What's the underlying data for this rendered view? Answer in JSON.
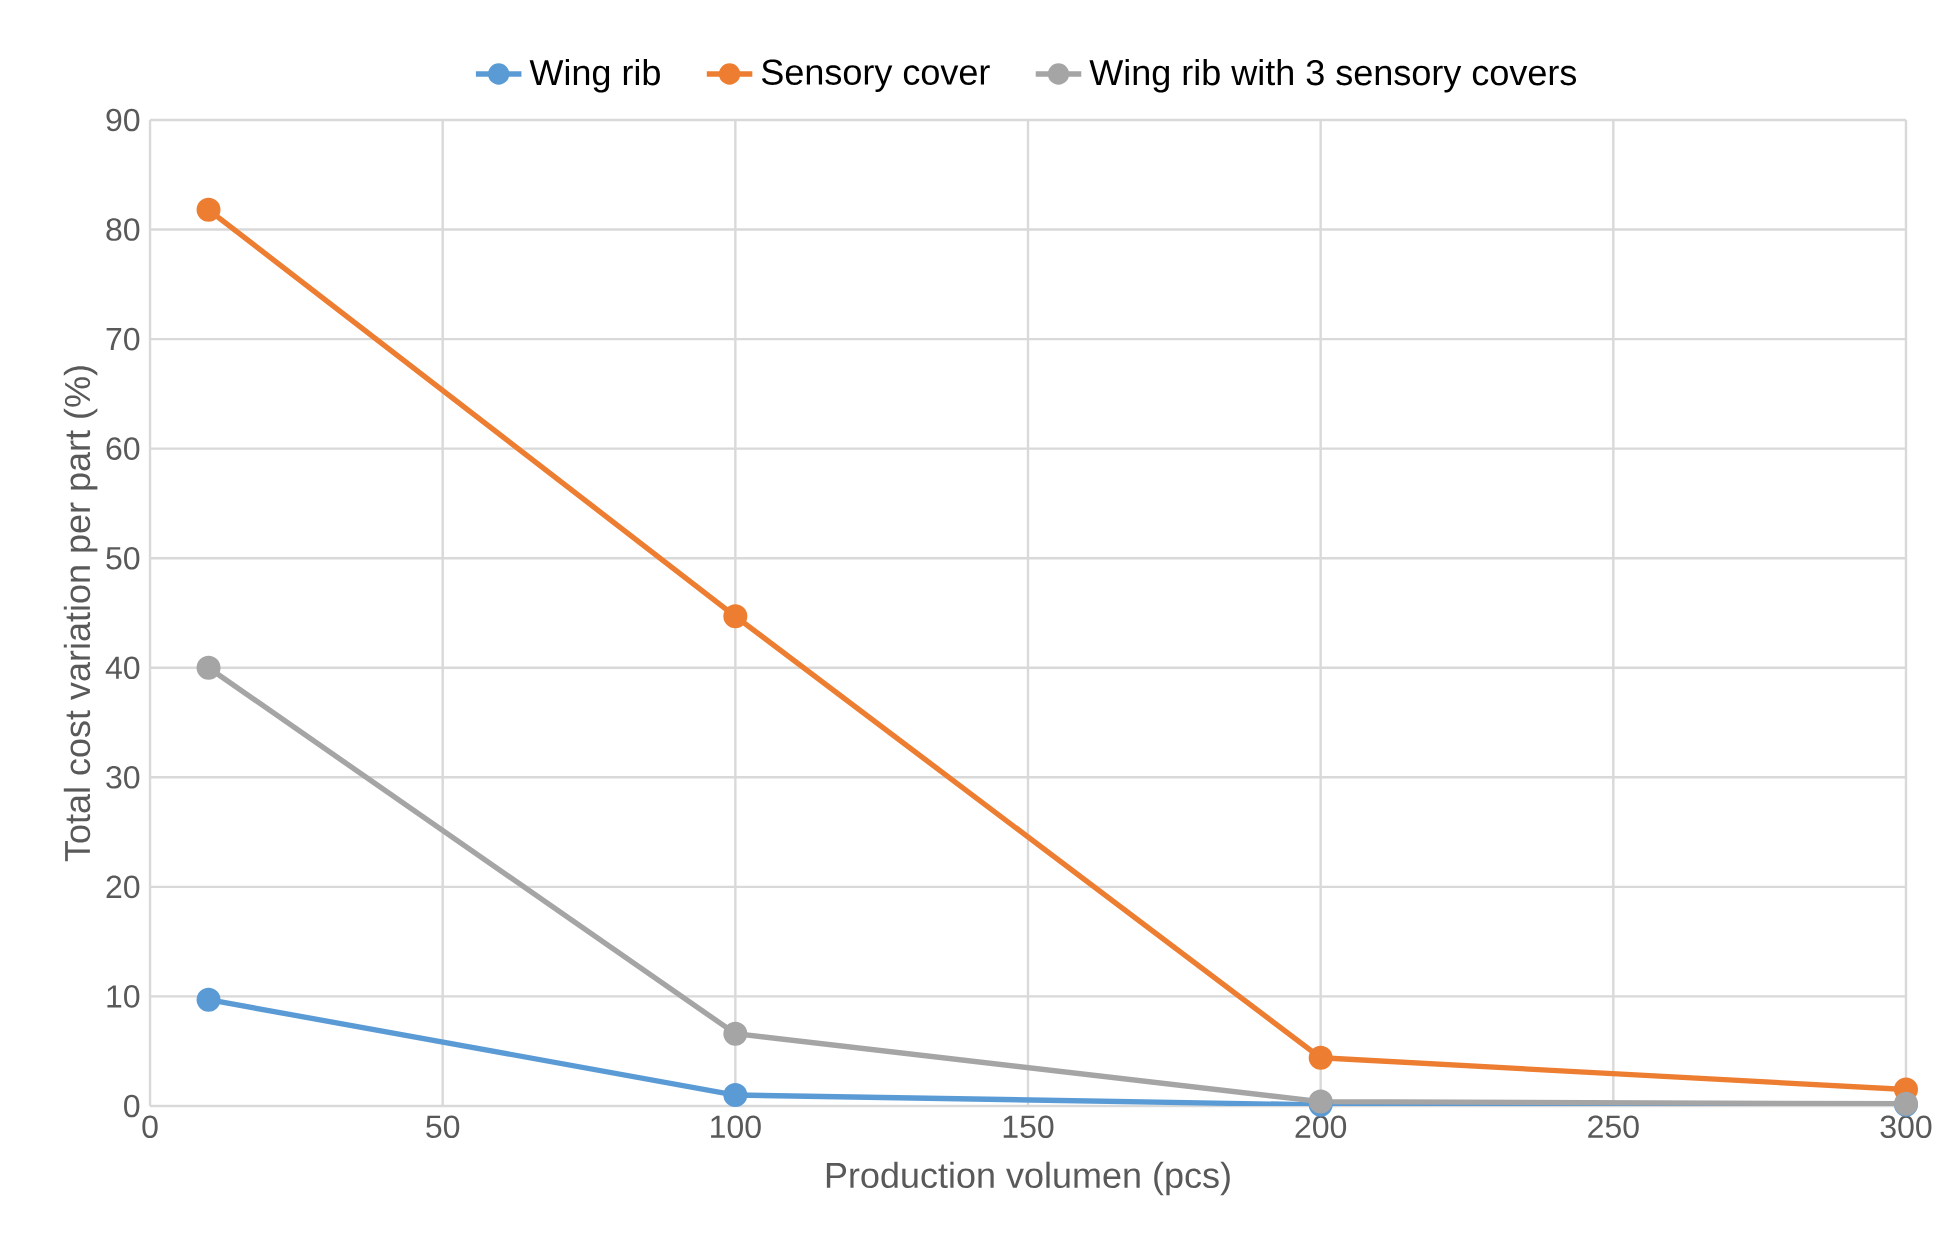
{
  "chart_data": {
    "type": "line",
    "xlabel": "Production volumen (pcs)",
    "ylabel": "Total cost variation per part (%)",
    "x": [
      10,
      100,
      200,
      300
    ],
    "series": [
      {
        "name": "Wing rib",
        "color": "#5b9bd5",
        "values": [
          9.7,
          1.0,
          0.1,
          0.1
        ]
      },
      {
        "name": "Sensory cover",
        "color": "#ed7d31",
        "values": [
          81.8,
          44.7,
          4.4,
          1.5
        ]
      },
      {
        "name": "Wing rib with 3 sensory covers",
        "color": "#a5a5a5",
        "values": [
          40.0,
          6.6,
          0.4,
          0.2
        ]
      }
    ],
    "xlim": [
      0,
      300
    ],
    "xticks": [
      0,
      50,
      100,
      150,
      200,
      250,
      300
    ],
    "ylim": [
      0,
      90
    ],
    "yticks": [
      0,
      10,
      20,
      30,
      40,
      50,
      60,
      70,
      80,
      90
    ],
    "grid": true,
    "legend": "top",
    "marker": "circle",
    "line_style": "solid"
  }
}
